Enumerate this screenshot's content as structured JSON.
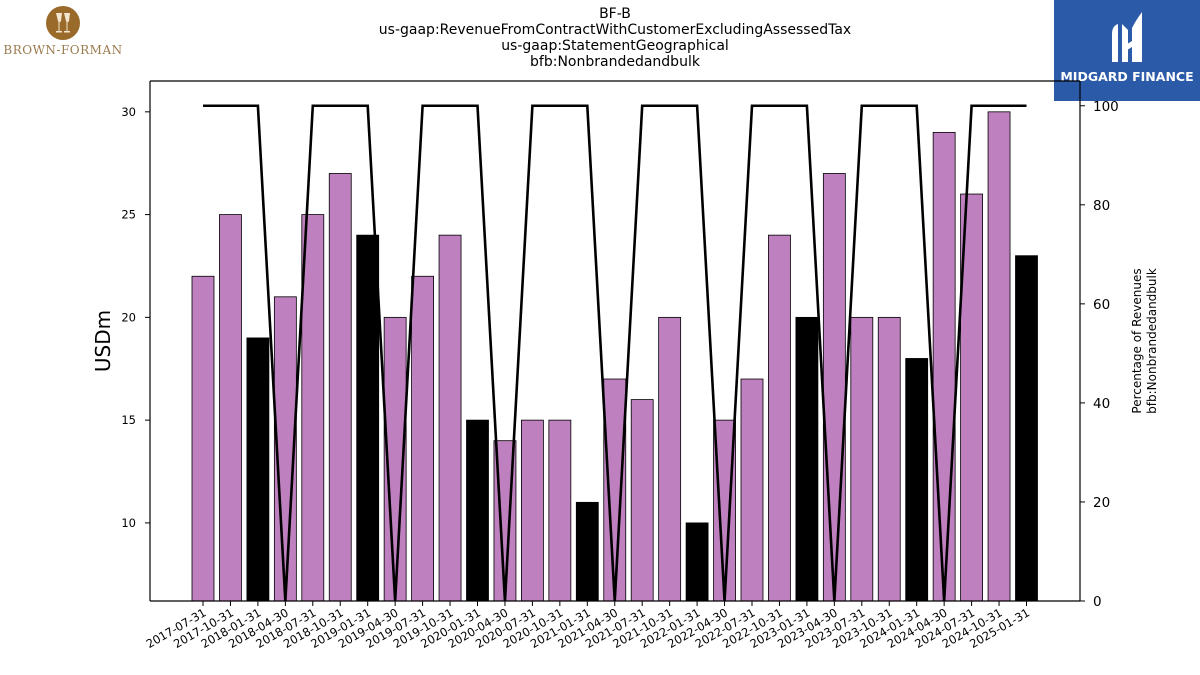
{
  "header": {
    "titles": [
      "BF-B",
      "us-gaap:RevenueFromContractWithCustomerExcludingAssessedTax",
      "us-gaap:StatementGeographical",
      "bfb:Nonbrandedandbulk"
    ]
  },
  "brand": {
    "name": "BROWN-FORMAN",
    "icon": "glasses-logo-icon"
  },
  "watermark": {
    "name": "MIDGARD FINANCE",
    "icon": "midgard-logo-icon",
    "color": "#2a5aa8"
  },
  "chart_data": {
    "type": "bar",
    "categories": [
      "2017-07-31",
      "2017-10-31",
      "2018-01-31",
      "2018-04-30",
      "2018-07-31",
      "2018-10-31",
      "2019-01-31",
      "2019-04-30",
      "2019-07-31",
      "2019-10-31",
      "2020-01-31",
      "2020-04-30",
      "2020-07-31",
      "2020-10-31",
      "2021-01-31",
      "2021-04-30",
      "2021-07-31",
      "2021-10-31",
      "2022-01-31",
      "2022-04-30",
      "2022-07-31",
      "2022-10-31",
      "2023-01-31",
      "2023-04-30",
      "2023-07-31",
      "2023-10-31",
      "2024-01-31",
      "2024-04-30",
      "2024-07-31",
      "2024-10-31",
      "2025-01-31"
    ],
    "values": [
      22,
      25,
      19,
      21,
      25,
      27,
      24,
      20,
      22,
      24,
      15,
      14,
      15,
      15,
      11,
      17,
      16,
      20,
      10,
      15,
      17,
      24,
      20,
      27,
      20,
      20,
      18,
      29,
      26,
      30,
      23
    ],
    "highlight": [
      false,
      false,
      true,
      false,
      false,
      false,
      true,
      false,
      false,
      false,
      true,
      false,
      false,
      false,
      true,
      false,
      false,
      false,
      true,
      false,
      false,
      false,
      true,
      false,
      false,
      false,
      true,
      false,
      false,
      false,
      true
    ],
    "percentage": [
      100,
      100,
      100,
      0,
      100,
      100,
      100,
      0,
      100,
      100,
      100,
      0,
      100,
      100,
      100,
      0,
      100,
      100,
      100,
      0,
      100,
      100,
      100,
      0,
      100,
      100,
      100,
      0,
      100,
      100,
      100
    ],
    "ylabel": "USDm",
    "y2label": [
      "Percentage of Revenues",
      "bfb:Nonbrandedandbulk"
    ],
    "ylim": [
      6.2,
      31.5
    ],
    "y2lim": [
      0,
      105
    ],
    "yticks": [
      10,
      15,
      20,
      25,
      30
    ],
    "y2ticks": [
      0,
      20,
      40,
      60,
      80,
      100
    ],
    "colors": {
      "bar": "#bf80bf",
      "highlight": "#000000",
      "line": "#000000"
    },
    "grid": false
  }
}
